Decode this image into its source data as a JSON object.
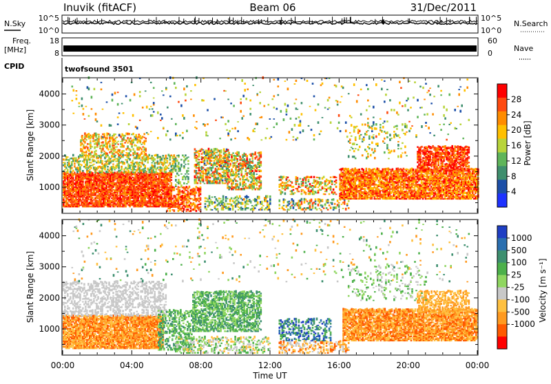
{
  "header": {
    "title": "Inuvik (fitACF)",
    "beam": "Beam 06",
    "date": "31/Dec/2011"
  },
  "status": {
    "nsky_label": "N.Sky",
    "nsearch_label": "N.Search",
    "noise_ticks": [
      "10^5",
      "10^0"
    ],
    "freq_label": "Freq.",
    "freq_unit": "[MHz]",
    "freq_ticks": [
      "18",
      "8"
    ],
    "nave_label": "Nave",
    "nave_ticks": [
      "60",
      "0"
    ],
    "cpid_label": "CPID",
    "cpid_value": "twofsound 3501"
  },
  "chart_data": [
    {
      "type": "heatmap",
      "name": "power",
      "ylabel": "Slant Range [km]",
      "ylim": [
        180,
        4500
      ],
      "yticks": [
        1000,
        2000,
        3000,
        4000
      ],
      "xlim": [
        0,
        24
      ],
      "colorbar": {
        "label": "Power [dB]",
        "ticks": [
          4,
          8,
          12,
          16,
          20,
          24,
          28
        ],
        "range": [
          0,
          32
        ],
        "colors": [
          "#1e32ff",
          "#1c4fa8",
          "#3f8f6e",
          "#5fb55a",
          "#b8d43a",
          "#ffc000",
          "#ff8c00",
          "#ff4a10",
          "#ff0000"
        ]
      },
      "scatter_regions": [
        {
          "t0": 0.0,
          "t1": 6.3,
          "r0": 350,
          "r1": 1450,
          "v": [
            22,
            31
          ],
          "density": 0.85
        },
        {
          "t0": 0.0,
          "t1": 6.5,
          "r0": 1450,
          "r1": 2000,
          "v": [
            8,
            24
          ],
          "density": 0.45
        },
        {
          "t0": 1.0,
          "t1": 4.8,
          "r0": 2000,
          "r1": 2700,
          "v": [
            12,
            28
          ],
          "density": 0.4
        },
        {
          "t0": 6.0,
          "t1": 8.0,
          "r0": 200,
          "r1": 1000,
          "v": [
            20,
            31
          ],
          "density": 0.55
        },
        {
          "t0": 6.5,
          "t1": 7.3,
          "r0": 1000,
          "r1": 2000,
          "v": [
            8,
            16
          ],
          "density": 0.3
        },
        {
          "t0": 7.6,
          "t1": 9.6,
          "r0": 1100,
          "r1": 2200,
          "v": [
            6,
            30
          ],
          "density": 0.6
        },
        {
          "t0": 8.2,
          "t1": 12.0,
          "r0": 250,
          "r1": 700,
          "v": [
            4,
            22
          ],
          "density": 0.35
        },
        {
          "t0": 9.5,
          "t1": 11.5,
          "r0": 900,
          "r1": 2100,
          "v": [
            8,
            30
          ],
          "density": 0.5
        },
        {
          "t0": 12.5,
          "t1": 16.5,
          "r0": 250,
          "r1": 600,
          "v": [
            4,
            28
          ],
          "density": 0.4
        },
        {
          "t0": 12.5,
          "t1": 15.8,
          "r0": 750,
          "r1": 1300,
          "v": [
            10,
            30
          ],
          "density": 0.35
        },
        {
          "t0": 16.0,
          "t1": 24.0,
          "r0": 600,
          "r1": 1550,
          "v": [
            18,
            31
          ],
          "density": 0.8
        },
        {
          "t0": 20.5,
          "t1": 23.5,
          "r0": 1500,
          "r1": 2300,
          "v": [
            22,
            32
          ],
          "density": 0.7
        },
        {
          "t0": 16.5,
          "t1": 20.0,
          "r0": 1900,
          "r1": 3000,
          "v": [
            8,
            24
          ],
          "density": 0.12
        },
        {
          "t0": 0.5,
          "t1": 23.5,
          "r0": 2500,
          "r1": 4500,
          "v": [
            4,
            26
          ],
          "density": 0.03
        }
      ]
    },
    {
      "type": "heatmap",
      "name": "velocity",
      "ylabel": "Slant Range [km]",
      "xlabel": "Time UT",
      "ylim": [
        180,
        4500
      ],
      "yticks": [
        1000,
        2000,
        3000,
        4000
      ],
      "xlim": [
        0,
        24
      ],
      "xticks": [
        "00:00",
        "04:00",
        "08:00",
        "12:00",
        "16:00",
        "20:00",
        "00:00"
      ],
      "colorbar": {
        "label": "Velocity [m s⁻¹]",
        "ticks": [
          "1000",
          "500",
          "100",
          "25",
          "-25",
          "-100",
          "-500",
          "-1000"
        ],
        "colors": [
          "#1f3fc4",
          "#2a6fb0",
          "#3d8f6f",
          "#4cb04a",
          "#8fd660",
          "#c8c8c8",
          "#ffc040",
          "#ff9a20",
          "#ff5a00",
          "#ff0000"
        ]
      },
      "scatter_regions": [
        {
          "t0": 0.0,
          "t1": 5.8,
          "r0": 350,
          "r1": 1400,
          "v": [
            6,
            8
          ],
          "density": 0.85
        },
        {
          "t0": 0.0,
          "t1": 6.0,
          "r0": 1400,
          "r1": 2500,
          "v": [
            5,
            5
          ],
          "density": 0.4
        },
        {
          "t0": 5.5,
          "t1": 7.5,
          "r0": 300,
          "r1": 1600,
          "v": [
            2,
            4
          ],
          "density": 0.4
        },
        {
          "t0": 7.5,
          "t1": 11.5,
          "r0": 900,
          "r1": 2200,
          "v": [
            2,
            4
          ],
          "density": 0.6
        },
        {
          "t0": 6.5,
          "t1": 12.0,
          "r0": 200,
          "r1": 700,
          "v": [
            3,
            6
          ],
          "density": 0.35
        },
        {
          "t0": 12.5,
          "t1": 15.5,
          "r0": 600,
          "r1": 1300,
          "v": [
            0,
            3
          ],
          "density": 0.4
        },
        {
          "t0": 12.5,
          "t1": 16.5,
          "r0": 200,
          "r1": 600,
          "v": [
            5,
            8
          ],
          "density": 0.35
        },
        {
          "t0": 16.2,
          "t1": 24.0,
          "r0": 600,
          "r1": 1600,
          "v": [
            6,
            8
          ],
          "density": 0.8
        },
        {
          "t0": 20.5,
          "t1": 23.5,
          "r0": 1500,
          "r1": 2200,
          "v": [
            6,
            7
          ],
          "density": 0.5
        },
        {
          "t0": 16.5,
          "t1": 21.0,
          "r0": 1900,
          "r1": 3000,
          "v": [
            3,
            5
          ],
          "density": 0.12
        },
        {
          "t0": 0.5,
          "t1": 23.5,
          "r0": 2500,
          "r1": 4500,
          "v": [
            2,
            7
          ],
          "density": 0.03
        }
      ]
    }
  ]
}
